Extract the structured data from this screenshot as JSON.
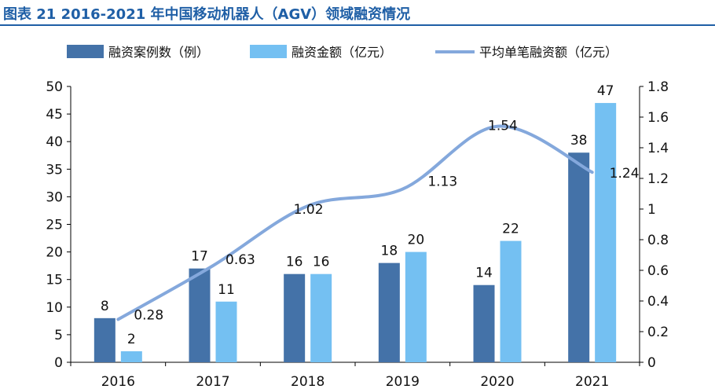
{
  "title": "图表 21 2016-2021 年中国移动机器人（AGV）领域融资情况",
  "colors": {
    "title": "#1f5fa6",
    "bar_count": "#4472a8",
    "bar_amount": "#74c0f2",
    "line": "#84a8dc"
  },
  "chart_data": {
    "type": "bar",
    "categories": [
      "2016",
      "2017",
      "2018",
      "2019",
      "2020",
      "2021"
    ],
    "series": [
      {
        "name": "融资案例数（例）",
        "type": "bar",
        "axis": "left",
        "values": [
          8,
          17,
          16,
          18,
          14,
          38
        ]
      },
      {
        "name": "融资金额（亿元）",
        "type": "bar",
        "axis": "left",
        "values": [
          2,
          11,
          16,
          20,
          22,
          47
        ]
      },
      {
        "name": "平均单笔融资额（亿元）",
        "type": "line",
        "axis": "right",
        "values": [
          0.28,
          0.63,
          1.02,
          1.13,
          1.54,
          1.24
        ]
      }
    ],
    "left_axis": {
      "min": 0,
      "max": 50,
      "step": 5
    },
    "right_axis": {
      "min": 0,
      "max": 1.8,
      "step": 0.2
    },
    "legend_position": "top",
    "grid": false
  }
}
